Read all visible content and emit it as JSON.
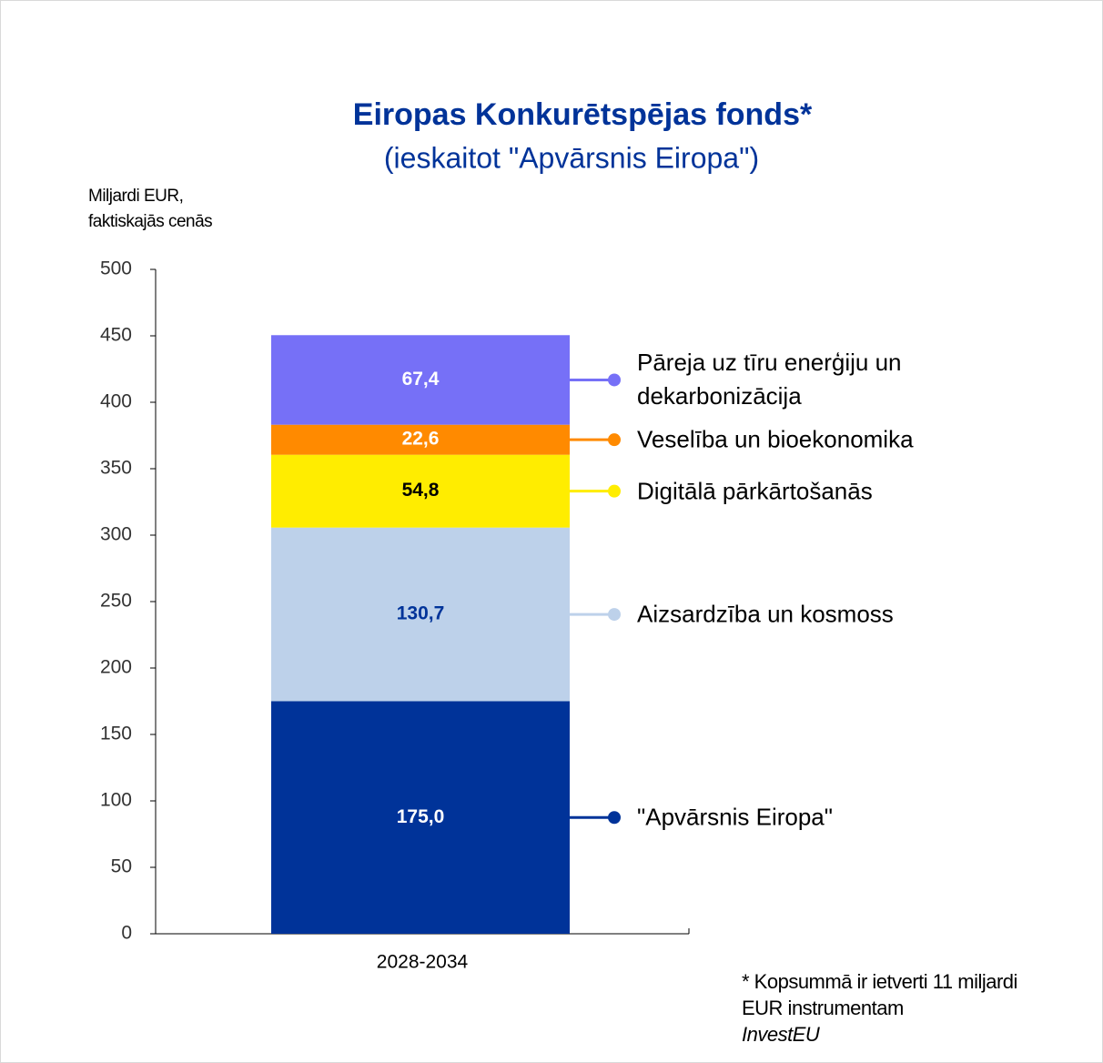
{
  "chart_data": {
    "type": "stacked_bar",
    "title": "Eiropas Konkurētspējas fonds*",
    "subtitle": "(ieskaitot \"Apvārsnis Eiropa\")",
    "y_axis_label": [
      "Miljardi EUR,",
      "faktiskajās cenās"
    ],
    "categories": [
      "2028-2034"
    ],
    "series": [
      {
        "name": "\"Apvārsnis Eiropa\"",
        "color": "#003399",
        "label_color": "#ffffff",
        "values": [
          175.0
        ],
        "value_labels": [
          "175,0"
        ]
      },
      {
        "name": "Aizsardzība un kosmoss",
        "color": "#bdd1ea",
        "label_color": "#003399",
        "values": [
          130.7
        ],
        "value_labels": [
          "130,7"
        ]
      },
      {
        "name": "Digitālā pārkārtošanās",
        "color": "#ffed00",
        "label_color": "#000000",
        "values": [
          54.8
        ],
        "value_labels": [
          "54,8"
        ]
      },
      {
        "name": "Veselība un bioekonomika",
        "color": "#ff8a00",
        "label_color": "#ffffff",
        "values": [
          22.6
        ],
        "value_labels": [
          "22,6"
        ]
      },
      {
        "name": "Pāreja uz tīru enerģiju un dekarbonizācija",
        "color": "#7670f7",
        "label_color": "#ffffff",
        "values": [
          67.4
        ],
        "value_labels": [
          "67,4"
        ]
      }
    ],
    "ylim": [
      0,
      500
    ],
    "yticks": [
      0,
      50,
      100,
      150,
      200,
      250,
      300,
      350,
      400,
      450,
      500
    ],
    "footnote": "* Kopsummā ir ietverti 11 miljardi EUR instrumentam",
    "footnote_emphasis": "InvestEU"
  }
}
